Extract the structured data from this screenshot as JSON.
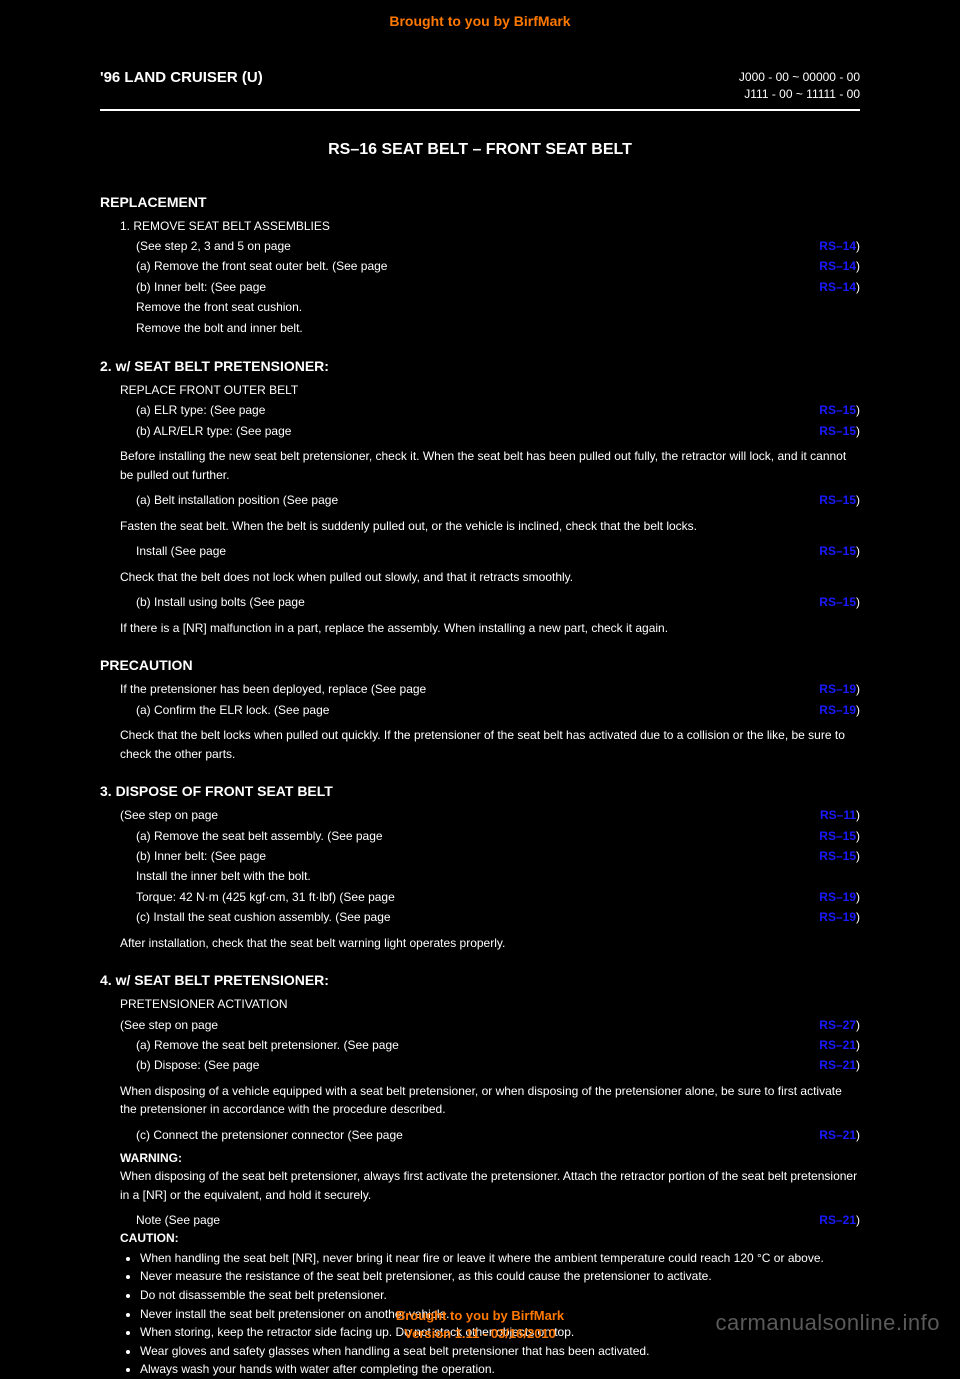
{
  "header_banner": "Brought to you by BirfMark",
  "footer_line1": "Brought to you by BirfMark",
  "footer_line2": "Version 1.11 - 03/16/2010",
  "watermark": "carmanualsonline.info",
  "page_header": {
    "model": "'96 LAND CRUISER (U)",
    "vin1": "J000 - 00 ~ 00000 - 00",
    "vin2": "J111 - 00 ~ 11111 - 00"
  },
  "main_title": "RS–16    SEAT BELT – FRONT SEAT BELT",
  "entries": [
    {
      "type": "section",
      "text": "REPLACEMENT"
    },
    {
      "type": "line",
      "text": "1.   REMOVE SEAT BELT ASSEMBLIES",
      "page": ""
    },
    {
      "type": "line",
      "text": "(See step 2, 3 and 5 on page",
      "page": "RS–14",
      "suffix": ")",
      "sub": true
    },
    {
      "type": "line",
      "text": "(a)  Remove the front seat outer belt. (See page",
      "page": "RS–14",
      "suffix": ")",
      "sub": true
    },
    {
      "type": "line",
      "text": "(b)  Inner belt: (See page",
      "page": "RS–14",
      "suffix": ")",
      "sub": true
    },
    {
      "type": "line",
      "text": "Remove the front seat cushion.",
      "sub": true
    },
    {
      "type": "line",
      "text": "Remove the bolt and inner belt.",
      "sub": true
    },
    {
      "type": "section",
      "text": "2.   w/ SEAT BELT PRETENSIONER:"
    },
    {
      "type": "line",
      "text": "REPLACE FRONT OUTER BELT"
    },
    {
      "type": "line",
      "text": "(a)  ELR type: (See page",
      "page": "RS–15",
      "suffix": ")",
      "sub": true
    },
    {
      "type": "line",
      "text": "(b)  ALR/ELR type: (See page",
      "page": "RS–15",
      "suffix": ")",
      "sub": true
    },
    {
      "type": "body",
      "text": "Before installing the new seat belt pretensioner, check it. When the seat belt has been pulled out fully, the retractor will lock, and it cannot be pulled out further."
    },
    {
      "type": "line",
      "text": "(a)  Belt installation position (See page",
      "page": "RS–15",
      "suffix": ")",
      "sub": true
    },
    {
      "type": "body",
      "text": "Fasten the seat belt. When the belt is suddenly pulled out, or the vehicle is inclined, check that the belt locks."
    },
    {
      "type": "line",
      "text": "Install (See page",
      "page": "RS–15",
      "suffix": ")",
      "sub": true
    },
    {
      "type": "body",
      "text": "Check that the belt does not lock when pulled out slowly, and that it retracts smoothly."
    },
    {
      "type": "line",
      "text": "(b)  Install using bolts (See page",
      "page": "RS–15",
      "suffix": ")",
      "sub": true
    },
    {
      "type": "body",
      "text": "If there is a [NR] malfunction in a part, replace the assembly. When installing a new part, check it again."
    },
    {
      "type": "section",
      "text": "PRECAUTION"
    },
    {
      "type": "line",
      "text": "If the pretensioner has been deployed, replace (See page",
      "page": "RS–19",
      "suffix": ")"
    },
    {
      "type": "line",
      "text": "(a)  Confirm the ELR lock. (See page",
      "page": "RS–19",
      "suffix": ")",
      "sub": true
    },
    {
      "type": "body",
      "text": "Check that the belt locks when pulled out quickly. If the pretensioner of the seat belt has activated due to a collision or the like, be sure to check the other parts."
    },
    {
      "type": "section",
      "text": "3.   DISPOSE OF FRONT SEAT BELT"
    },
    {
      "type": "line",
      "text": "(See step on page",
      "page": "RS–11",
      "suffix": ")"
    },
    {
      "type": "line",
      "text": "(a)  Remove the seat belt assembly. (See page",
      "page": "RS–15",
      "suffix": ")",
      "sub": true
    },
    {
      "type": "line",
      "text": "(b)  Inner belt: (See page",
      "page": "RS–15",
      "suffix": ")",
      "sub": true
    },
    {
      "type": "line",
      "text": "Install the inner belt with the bolt.",
      "sub": true
    },
    {
      "type": "line",
      "text": "Torque: 42 N·m (425 kgf·cm, 31 ft·lbf) (See page",
      "page": "RS–19",
      "suffix": ")",
      "sub": true
    },
    {
      "type": "line",
      "text": "(c)  Install the seat cushion assembly. (See page",
      "page": "RS–19",
      "suffix": ")",
      "sub": true
    },
    {
      "type": "body",
      "text": "After installation, check that the seat belt warning light operates properly."
    },
    {
      "type": "section",
      "text": "4.   w/ SEAT BELT PRETENSIONER:"
    },
    {
      "type": "line",
      "text": "PRETENSIONER ACTIVATION"
    },
    {
      "type": "line",
      "text": "(See step on page",
      "page": "RS–27",
      "suffix": ")"
    },
    {
      "type": "line",
      "text": "(a)  Remove the seat belt pretensioner. (See page",
      "page": "RS–21",
      "suffix": ")",
      "sub": true
    },
    {
      "type": "line",
      "text": "(b)  Dispose: (See page",
      "page": "RS–21",
      "suffix": ")",
      "sub": true
    },
    {
      "type": "body",
      "text": "When disposing of a vehicle equipped with a seat belt pretensioner, or when disposing of the pretensioner alone, be sure to first activate the pretensioner in accordance with the procedure described."
    },
    {
      "type": "line",
      "text": "(c)  Connect the pretensioner connector (See page",
      "page": "RS–21",
      "suffix": ")",
      "sub": true
    },
    {
      "type": "warning",
      "label": "WARNING:",
      "text": "When disposing of the seat belt pretensioner, always first activate the pretensioner. Attach the retractor portion of the seat belt pretensioner in a [NR] or the equivalent, and hold it securely."
    },
    {
      "type": "line",
      "text": "Note (See page",
      "page": "RS–21",
      "suffix": ")",
      "sub": true
    },
    {
      "type": "caution",
      "label": "CAUTION:",
      "items": [
        "When handling the seat belt [NR], never bring it near fire or leave it where the ambient temperature could reach 120 °C or above.",
        "Never measure the resistance of the seat belt pretensioner, as this could cause the pretensioner to activate.",
        "Do not disassemble the seat belt pretensioner.",
        "Never install the seat belt pretensioner on another vehicle.",
        "When storing, keep the retractor side facing up. Do not stack other objects on top.",
        "Wear gloves and safety glasses when handling a seat belt pretensioner that has been activated.",
        "Always wash your hands with water after completing the operation."
      ]
    }
  ]
}
